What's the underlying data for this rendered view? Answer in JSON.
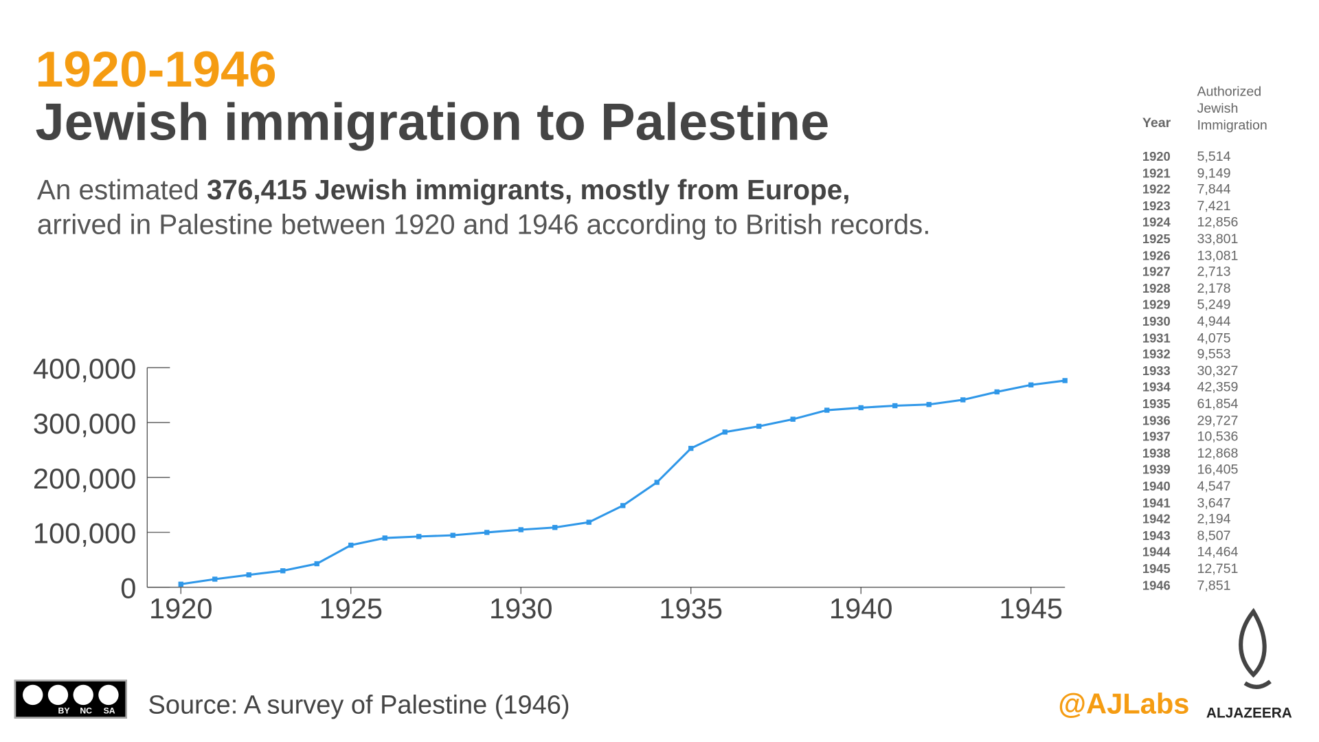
{
  "header": {
    "period": "1920-1946",
    "title": "Jewish immigration to Palestine",
    "subtitle_start": "An estimated",
    "subtitle_bold": "376,415 Jewish immigrants, mostly from Europe,",
    "subtitle_end": "arrived in Palestine between 1920 and 1946 according to British records."
  },
  "chart_data": {
    "type": "line",
    "x": [
      1920,
      1921,
      1922,
      1923,
      1924,
      1925,
      1926,
      1927,
      1928,
      1929,
      1930,
      1931,
      1932,
      1933,
      1934,
      1935,
      1936,
      1937,
      1938,
      1939,
      1940,
      1941,
      1942,
      1943,
      1944,
      1945,
      1946
    ],
    "series": [
      {
        "color": "#2f97e8",
        "values": [
          5514,
          14663,
          22507,
          29928,
          42784,
          76585,
          89666,
          92379,
          94557,
          99806,
          104750,
          108825,
          118378,
          148705,
          191064,
          252918,
          282645,
          293181,
          306049,
          322454,
          327001,
          330648,
          332842,
          341349,
          355813,
          368564,
          376415
        ]
      }
    ],
    "xlim": [
      1920,
      1946
    ],
    "xticks": [
      1920,
      1925,
      1930,
      1935,
      1940,
      1945
    ],
    "ylim": [
      0,
      400000
    ],
    "yticks": [
      0,
      {
        "value": 100000,
        "label": "100,000"
      },
      {
        "value": 200000,
        "label": "200,000"
      },
      {
        "value": 300000,
        "label": "300,000"
      },
      {
        "value": 400000,
        "label": "400,000"
      }
    ]
  },
  "table": {
    "header": [
      "Year",
      "Authorized Jewish Immigration"
    ],
    "rows": [
      [
        "1920",
        "5,514"
      ],
      [
        "1921",
        "9,149"
      ],
      [
        "1922",
        "7,844"
      ],
      [
        "1923",
        "7,421"
      ],
      [
        "1924",
        "12,856"
      ],
      [
        "1925",
        "33,801"
      ],
      [
        "1926",
        "13,081"
      ],
      [
        "1927",
        "2,713"
      ],
      [
        "1928",
        "2,178"
      ],
      [
        "1929",
        "5,249"
      ],
      [
        "1930",
        "4,944"
      ],
      [
        "1931",
        "4,075"
      ],
      [
        "1932",
        "9,553"
      ],
      [
        "1933",
        "30,327"
      ],
      [
        "1934",
        "42,359"
      ],
      [
        "1935",
        "61,854"
      ],
      [
        "1936",
        "29,727"
      ],
      [
        "1937",
        "10,536"
      ],
      [
        "1938",
        "12,868"
      ],
      [
        "1939",
        "16,405"
      ],
      [
        "1940",
        "4,547"
      ],
      [
        "1941",
        "3,647"
      ],
      [
        "1942",
        "2,194"
      ],
      [
        "1943",
        "8,507"
      ],
      [
        "1944",
        "14,464"
      ],
      [
        "1945",
        "12,751"
      ],
      [
        "1946",
        "7,851"
      ]
    ]
  },
  "footer": {
    "source": "Source: A survey of Palestine (1946)",
    "handle": "@AJLabs",
    "brand": "ALJAZEERA",
    "license": [
      "BY",
      "NC",
      "SA"
    ]
  }
}
